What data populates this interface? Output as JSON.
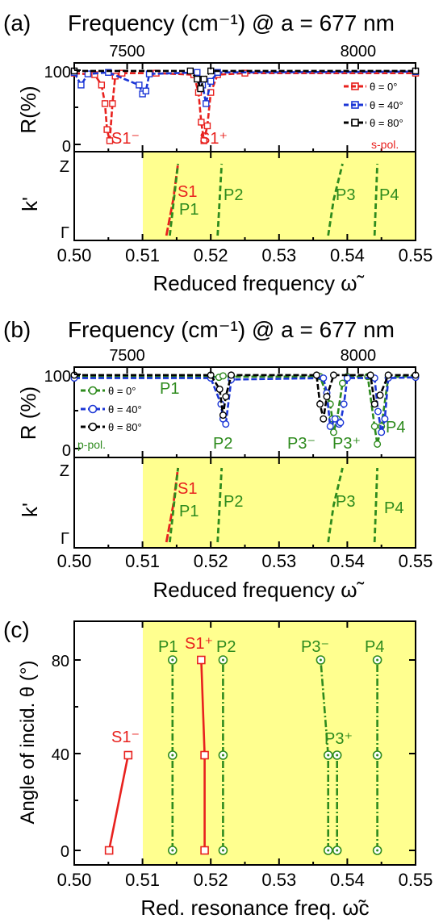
{
  "figure": {
    "panels": [
      {
        "tag": "(a)",
        "top_title": "Frequency (cm⁻¹) @ a = 677 nm",
        "top_ticks": [
          "7500",
          "8000"
        ],
        "refl_ylabel": "R(%)",
        "refl_yticks": [
          "100",
          "50",
          "0"
        ],
        "band_ylabel": "k'",
        "band_yticks": [
          "Z",
          "Γ"
        ],
        "xlabel": "Reduced frequency ω̃",
        "xticks": [
          "0.50",
          "0.51",
          "0.52",
          "0.53",
          "0.54",
          "0.55"
        ],
        "pol": "s-pol.",
        "legend": [
          "θ = 0°",
          "θ = 40°",
          "θ = 80°"
        ],
        "dip_labels": [
          "S1⁻",
          "S1⁺"
        ],
        "band_labels": [
          "S1",
          "P1",
          "P2",
          "P3",
          "P4"
        ]
      },
      {
        "tag": "(b)",
        "top_title": "Frequency (cm⁻¹) @ a = 677 nm",
        "top_ticks": [
          "7500",
          "8000"
        ],
        "refl_ylabel": "R (%)",
        "refl_yticks": [
          "100",
          "50",
          "0"
        ],
        "band_ylabel": "k'",
        "band_yticks": [
          "Z",
          "Γ"
        ],
        "xlabel": "Reduced frequency ω̃",
        "xticks": [
          "0.50",
          "0.51",
          "0.52",
          "0.53",
          "0.54",
          "0.55"
        ],
        "pol": "p-pol.",
        "legend": [
          "θ = 0°",
          "θ = 40°",
          "θ = 80°"
        ],
        "dip_labels": [
          "P1",
          "P2",
          "P3⁻",
          "P3⁺",
          "P4"
        ],
        "band_labels": [
          "S1",
          "P1",
          "P2",
          "P3",
          "P4"
        ]
      },
      {
        "tag": "(c)",
        "ylabel": "Angle of incid. θ (°)",
        "yticks": [
          "80",
          "40",
          "0"
        ],
        "xlabel": "Red. resonance freq. ω̃c",
        "xticks": [
          "0.50",
          "0.51",
          "0.52",
          "0.53",
          "0.54",
          "0.55"
        ],
        "point_labels": [
          "S1⁻",
          "S1⁺",
          "P1",
          "P2",
          "P3⁻",
          "P3⁺",
          "P4"
        ]
      }
    ]
  },
  "colors": {
    "s_modes": "#e8211e",
    "p_modes": "#2e8b1e",
    "theta_40": "#1b36d6",
    "theta_80": "#000000",
    "shade": "#ffff8f"
  },
  "chart_data": [
    {
      "type": "line",
      "panel": "(a) reflectance",
      "ylabel": "R(%)",
      "xlabel": "Reduced frequency",
      "xlim": [
        0.5,
        0.55
      ],
      "ylim": [
        0,
        100
      ],
      "top_axis": {
        "label": "Frequency (cm⁻¹) @ a = 677 nm",
        "ticks": [
          7500,
          8000
        ]
      },
      "series": [
        {
          "name": "θ = 0°",
          "x": [
            0.5,
            0.503,
            0.504,
            0.5045,
            0.5048,
            0.5052,
            0.5056,
            0.506,
            0.507,
            0.512,
            0.5175,
            0.5182,
            0.5186,
            0.519,
            0.5195,
            0.52,
            0.521,
            0.525,
            0.55
          ],
          "y": [
            96,
            94,
            80,
            55,
            20,
            5,
            55,
            92,
            96,
            96,
            94,
            70,
            30,
            5,
            25,
            70,
            94,
            96,
            96
          ]
        },
        {
          "name": "θ = 40°",
          "x": [
            0.5,
            0.501,
            0.502,
            0.505,
            0.5095,
            0.51,
            0.5105,
            0.511,
            0.518,
            0.5188,
            0.5193,
            0.52,
            0.521,
            0.55
          ],
          "y": [
            97,
            80,
            95,
            97,
            80,
            68,
            72,
            95,
            97,
            80,
            55,
            85,
            97,
            98
          ]
        },
        {
          "name": "θ = 80°",
          "x": [
            0.5,
            0.517,
            0.518,
            0.5185,
            0.519,
            0.52,
            0.55
          ],
          "y": [
            99,
            99,
            88,
            75,
            88,
            99,
            99
          ]
        }
      ]
    },
    {
      "type": "line",
      "panel": "(a) band diagram",
      "ylabel": "k'",
      "xlabel": "Reduced frequency",
      "xlim": [
        0.5,
        0.55
      ],
      "y_ticks": [
        "Γ",
        "Z"
      ],
      "shaded_x_range": [
        0.51,
        0.55
      ],
      "series": [
        {
          "name": "S1",
          "x": [
            0.5135,
            0.5145,
            0.5152
          ],
          "y": [
            0,
            0.5,
            1
          ]
        },
        {
          "name": "P1",
          "x": [
            0.514,
            0.5146,
            0.5152
          ],
          "y": [
            0,
            0.5,
            1
          ]
        },
        {
          "name": "P2",
          "x": [
            0.521,
            0.5213,
            0.5216
          ],
          "y": [
            0,
            0.5,
            1
          ]
        },
        {
          "name": "P3",
          "x": [
            0.5372,
            0.538,
            0.5393
          ],
          "y": [
            0,
            0.5,
            1
          ]
        },
        {
          "name": "P4",
          "x": [
            0.544,
            0.5442,
            0.5444
          ],
          "y": [
            0,
            0.5,
            1
          ]
        }
      ]
    },
    {
      "type": "line",
      "panel": "(b) reflectance",
      "ylabel": "R (%)",
      "xlabel": "Reduced frequency",
      "xlim": [
        0.5,
        0.55
      ],
      "ylim": [
        0,
        100
      ],
      "top_axis": {
        "label": "Frequency (cm⁻¹) @ a = 677 nm",
        "ticks": [
          7500,
          8000
        ]
      },
      "series": [
        {
          "name": "θ = 0°",
          "x": [
            0.5,
            0.52,
            0.5212,
            0.5218,
            0.523,
            0.536,
            0.5375,
            0.5378,
            0.538,
            0.5385,
            0.5393,
            0.54,
            0.543,
            0.544,
            0.5444,
            0.545,
            0.546,
            0.55
          ],
          "y": [
            97,
            97,
            96,
            98,
            97,
            97,
            60,
            40,
            22,
            40,
            88,
            97,
            97,
            30,
            6,
            30,
            96,
            98
          ]
        },
        {
          "name": "θ = 40°",
          "x": [
            0.5,
            0.52,
            0.5215,
            0.5218,
            0.5222,
            0.523,
            0.5365,
            0.537,
            0.5375,
            0.5382,
            0.5388,
            0.539,
            0.5395,
            0.54,
            0.544,
            0.5445,
            0.545,
            0.5455,
            0.546,
            0.55
          ],
          "y": [
            95,
            95,
            60,
            40,
            33,
            93,
            95,
            75,
            30,
            40,
            33,
            35,
            60,
            95,
            95,
            50,
            22,
            40,
            95,
            96
          ]
        },
        {
          "name": "θ = 80°",
          "x": [
            0.5,
            0.52,
            0.5213,
            0.5218,
            0.5222,
            0.523,
            0.5355,
            0.536,
            0.5365,
            0.537,
            0.538,
            0.5434,
            0.544,
            0.5448,
            0.546,
            0.55
          ],
          "y": [
            99,
            99,
            80,
            45,
            70,
            99,
            99,
            60,
            40,
            70,
            99,
            99,
            60,
            72,
            99,
            99
          ]
        }
      ]
    },
    {
      "type": "line",
      "panel": "(b) band diagram",
      "ylabel": "k'",
      "xlabel": "Reduced frequency",
      "xlim": [
        0.5,
        0.55
      ],
      "y_ticks": [
        "Γ",
        "Z"
      ],
      "shaded_x_range": [
        0.51,
        0.55
      ],
      "series": [
        {
          "name": "S1",
          "x": [
            0.5135,
            0.5145,
            0.5152
          ],
          "y": [
            0,
            0.5,
            1
          ]
        },
        {
          "name": "P1",
          "x": [
            0.514,
            0.5146,
            0.5152
          ],
          "y": [
            0,
            0.5,
            1
          ]
        },
        {
          "name": "P2",
          "x": [
            0.521,
            0.5213,
            0.5216
          ],
          "y": [
            0,
            0.5,
            1
          ]
        },
        {
          "name": "P3",
          "x": [
            0.5372,
            0.538,
            0.5393
          ],
          "y": [
            0,
            0.5,
            1
          ]
        },
        {
          "name": "P4",
          "x": [
            0.544,
            0.5442,
            0.5444
          ],
          "y": [
            0,
            0.5,
            1
          ]
        }
      ]
    },
    {
      "type": "scatter",
      "panel": "(c)",
      "ylabel": "Angle of incid. θ (°)",
      "xlabel": "Red. resonance freq.",
      "xlim": [
        0.5,
        0.55
      ],
      "ylim": [
        -5,
        95
      ],
      "shaded_x_range": [
        0.51,
        0.55
      ],
      "series": [
        {
          "name": "S1⁻",
          "x": [
            0.5051,
            0.5079
          ],
          "y": [
            0,
            40
          ]
        },
        {
          "name": "S1⁺",
          "x": [
            0.5191,
            0.5191,
            0.5186
          ],
          "y": [
            0,
            40,
            80
          ]
        },
        {
          "name": "P1",
          "x": [
            0.5144,
            0.5144,
            0.5144
          ],
          "y": [
            0,
            40,
            80
          ]
        },
        {
          "name": "P2",
          "x": [
            0.5218,
            0.5218,
            0.5218
          ],
          "y": [
            0,
            40,
            80
          ]
        },
        {
          "name": "P3⁻",
          "x": [
            0.5372,
            0.5372,
            0.5361
          ],
          "y": [
            0,
            40,
            80
          ]
        },
        {
          "name": "P3⁺",
          "x": [
            0.5385,
            0.5385
          ],
          "y": [
            0,
            40
          ]
        },
        {
          "name": "P4",
          "x": [
            0.5444,
            0.5444,
            0.5444
          ],
          "y": [
            0,
            40,
            80
          ]
        }
      ]
    }
  ]
}
